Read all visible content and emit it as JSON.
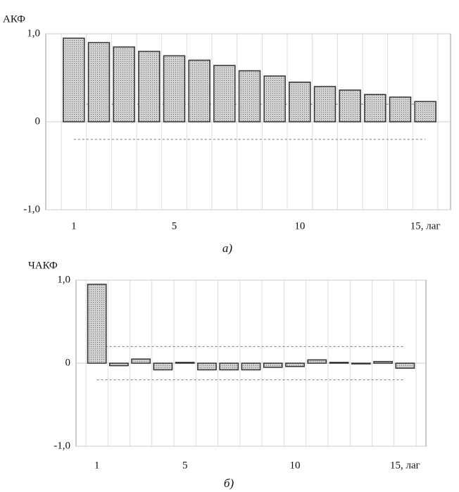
{
  "chart_data": [
    {
      "type": "bar",
      "ylabel": "АКФ",
      "caption": "а)",
      "categories": [
        "1",
        null,
        null,
        null,
        "5",
        null,
        null,
        null,
        null,
        "10",
        null,
        null,
        null,
        null,
        "15, лаг"
      ],
      "values": [
        0.95,
        0.9,
        0.85,
        0.8,
        0.75,
        0.7,
        0.64,
        0.58,
        0.52,
        0.45,
        0.4,
        0.36,
        0.31,
        0.28,
        0.23
      ],
      "band_limits": [
        -0.2,
        0.2
      ],
      "ylim": [
        -1,
        1
      ],
      "yticks": [
        {
          "value": 1,
          "label": "1,0"
        },
        0,
        {
          "value": -1,
          "label": "-1,0"
        }
      ],
      "color": "#c8c8c8",
      "grid": true
    },
    {
      "type": "bar",
      "ylabel": "ЧАКФ",
      "caption": "б)",
      "categories": [
        "1",
        null,
        null,
        null,
        "5",
        null,
        null,
        null,
        null,
        "10",
        null,
        null,
        null,
        null,
        "15, лаг"
      ],
      "values": [
        0.95,
        -0.03,
        0.05,
        -0.08,
        0.01,
        -0.08,
        -0.08,
        -0.08,
        -0.05,
        -0.04,
        0.04,
        0.01,
        0.0,
        0.02,
        -0.06
      ],
      "band_limits": [
        -0.2,
        0.2
      ],
      "ylim": [
        -1,
        1
      ],
      "yticks": [
        {
          "value": 1,
          "label": "1,0"
        },
        0,
        {
          "value": -1,
          "label": "-1,0"
        }
      ],
      "color": "#c8c8c8",
      "grid": true
    }
  ]
}
